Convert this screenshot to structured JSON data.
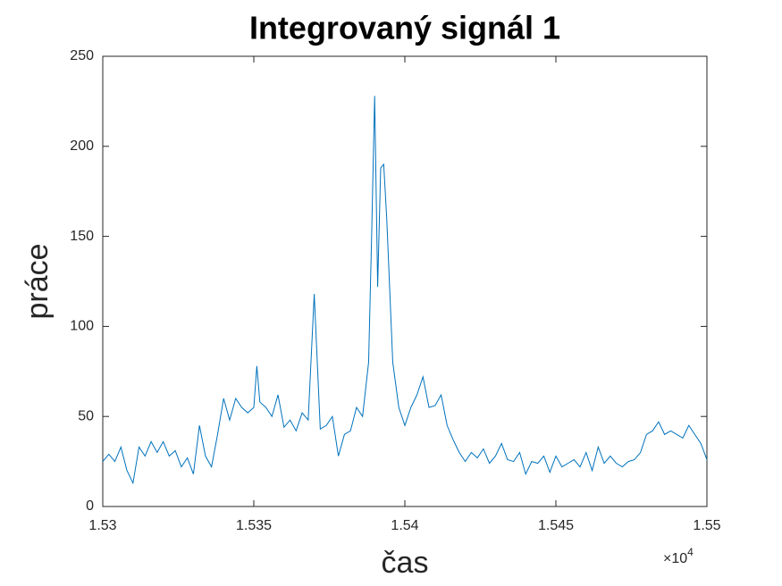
{
  "chart_data": {
    "type": "line",
    "title": "Integrovaný signál 1",
    "x_label": "čas",
    "y_label": "práce",
    "x_exponent": {
      "base": "×10",
      "power": "4"
    },
    "color": "#0072bd",
    "x": [
      15300,
      15302,
      15304,
      15306,
      15308,
      15310,
      15312,
      15314,
      15316,
      15318,
      15320,
      15322,
      15324,
      15326,
      15328,
      15330,
      15332,
      15334,
      15336,
      15338,
      15340,
      15342,
      15344,
      15346,
      15348,
      15350,
      15351,
      15352,
      15354,
      15356,
      15358,
      15360,
      15362,
      15364,
      15366,
      15368,
      15370,
      15372,
      15374,
      15376,
      15378,
      15380,
      15382,
      15384,
      15386,
      15388,
      15389,
      15390,
      15391,
      15392,
      15393,
      15394,
      15395,
      15396,
      15398,
      15400,
      15402,
      15404,
      15406,
      15408,
      15410,
      15412,
      15414,
      15416,
      15418,
      15420,
      15422,
      15424,
      15426,
      15428,
      15430,
      15432,
      15434,
      15436,
      15438,
      15440,
      15442,
      15444,
      15446,
      15448,
      15450,
      15452,
      15454,
      15456,
      15458,
      15460,
      15462,
      15464,
      15466,
      15468,
      15470,
      15472,
      15474,
      15476,
      15478,
      15480,
      15482,
      15484,
      15486,
      15488,
      15490,
      15492,
      15494,
      15496,
      15498,
      15500
    ],
    "values": [
      25,
      29,
      25,
      33,
      20,
      13,
      33,
      28,
      36,
      30,
      36,
      28,
      31,
      22,
      27,
      18,
      45,
      28,
      22,
      40,
      60,
      48,
      60,
      55,
      52,
      55,
      78,
      58,
      55,
      50,
      62,
      44,
      48,
      42,
      52,
      48,
      118,
      43,
      45,
      50,
      28,
      40,
      42,
      55,
      50,
      80,
      150,
      228,
      122,
      188,
      190,
      160,
      120,
      80,
      55,
      45,
      55,
      62,
      72,
      55,
      56,
      62,
      45,
      37,
      30,
      25,
      30,
      27,
      32,
      24,
      28,
      35,
      26,
      25,
      30,
      18,
      25,
      24,
      28,
      19,
      28,
      22,
      24,
      26,
      22,
      30,
      20,
      33,
      24,
      28,
      24,
      22,
      25,
      26,
      30,
      40,
      42,
      47,
      40,
      42,
      40,
      38,
      45,
      40,
      35,
      26
    ],
    "xlim": [
      15300,
      15500
    ],
    "xticks": [
      {
        "value": 15300,
        "label": "1.53"
      },
      {
        "value": 15350,
        "label": "1.535"
      },
      {
        "value": 15400,
        "label": "1.54"
      },
      {
        "value": 15450,
        "label": "1.545"
      },
      {
        "value": 15500,
        "label": "1.55"
      }
    ],
    "ylim": [
      0,
      250
    ],
    "yticks": [
      0,
      50,
      100,
      150,
      200,
      250
    ],
    "grid": false
  }
}
